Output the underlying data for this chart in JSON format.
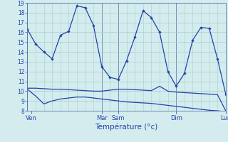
{
  "title": "Température (°c)",
  "bg_color": "#d4ecee",
  "grid_color": "#a8cccc",
  "line_color": "#2244aa",
  "ylabel_min": 8,
  "ylabel_max": 19,
  "x_ticks_labels": [
    "Ven",
    "Mar",
    "Sam",
    "Dim",
    "Lun"
  ],
  "x_ticks_pos": [
    0.5,
    9,
    11,
    18,
    24
  ],
  "vline_pos": [
    0,
    9,
    11,
    18,
    24
  ],
  "num_points": 25,
  "line1_y": [
    16.3,
    14.8,
    14.0,
    13.3,
    15.7,
    16.1,
    18.7,
    18.5,
    16.7,
    12.5,
    11.4,
    11.2,
    13.1,
    15.5,
    18.2,
    17.5,
    16.0,
    12.0,
    10.5,
    11.8,
    15.2,
    16.5,
    16.4,
    13.3,
    9.7
  ],
  "line2_y": [
    10.3,
    10.3,
    10.25,
    10.2,
    10.2,
    10.15,
    10.1,
    10.05,
    10.0,
    10.0,
    10.1,
    10.2,
    10.2,
    10.15,
    10.1,
    10.05,
    10.5,
    10.0,
    9.9,
    9.85,
    9.8,
    9.75,
    9.7,
    9.65,
    8.0
  ],
  "line3_y": [
    10.2,
    9.5,
    8.7,
    9.0,
    9.2,
    9.3,
    9.4,
    9.4,
    9.3,
    9.2,
    9.1,
    9.0,
    8.9,
    8.85,
    8.8,
    8.75,
    8.65,
    8.55,
    8.45,
    8.35,
    8.25,
    8.15,
    8.05,
    8.0,
    7.9
  ]
}
